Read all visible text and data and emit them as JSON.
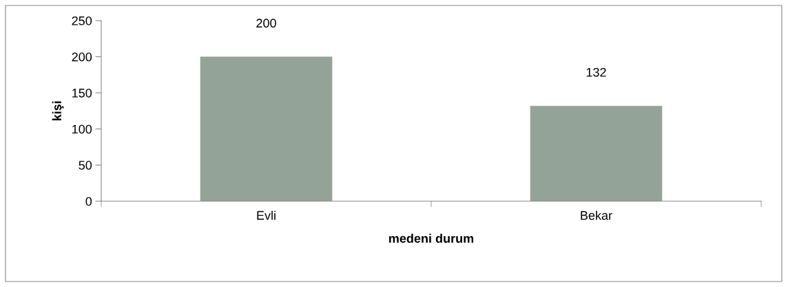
{
  "chart_data": {
    "type": "bar",
    "xlabel": "medeni durum",
    "ylabel": "kişi",
    "categories": [
      "Evli",
      "Bekar"
    ],
    "values": [
      200,
      132
    ],
    "color": "#94a397",
    "ylim": [
      0,
      250
    ],
    "yticks": [
      0,
      50,
      100,
      150,
      200,
      250
    ],
    "data_labels": true,
    "grid": false
  }
}
